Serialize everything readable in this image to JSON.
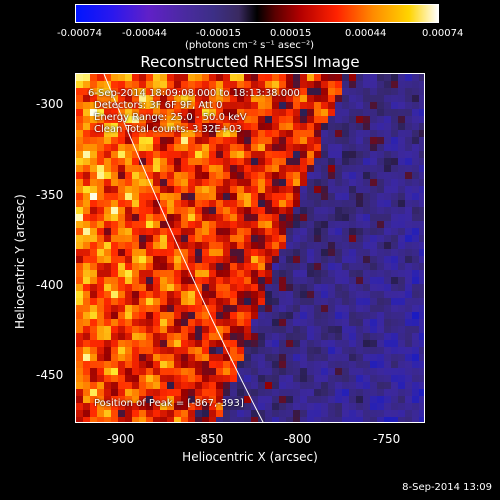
{
  "colorbar": {
    "ticks": [
      "-0.00074",
      "-0.00044",
      "-0.00015",
      "0.00015",
      "0.00044",
      "0.00074"
    ],
    "unit": "(photons cm⁻² s⁻¹ asec⁻²)"
  },
  "title": "Reconstructed RHESSI Image",
  "annotations": {
    "time": "6-Sep-2014 18:09:08.000 to 18:13:38.000",
    "detectors": "Detectors: 3F 6F 9F, Att 0",
    "energy": "Energy Range: 25.0 - 50.0 keV",
    "clean": "Clean     Total counts: 3.32E+03",
    "peak": "Position of Peak = [-867,-393]"
  },
  "axes": {
    "xlabel": "Heliocentric X (arcsec)",
    "ylabel": "Heliocentric Y (arcsec)",
    "xticks": [
      "-900",
      "-850",
      "-800",
      "-750"
    ],
    "yticks": [
      "-300",
      "-350",
      "-400",
      "-450"
    ]
  },
  "footer": "8-Sep-2014 13:09"
}
